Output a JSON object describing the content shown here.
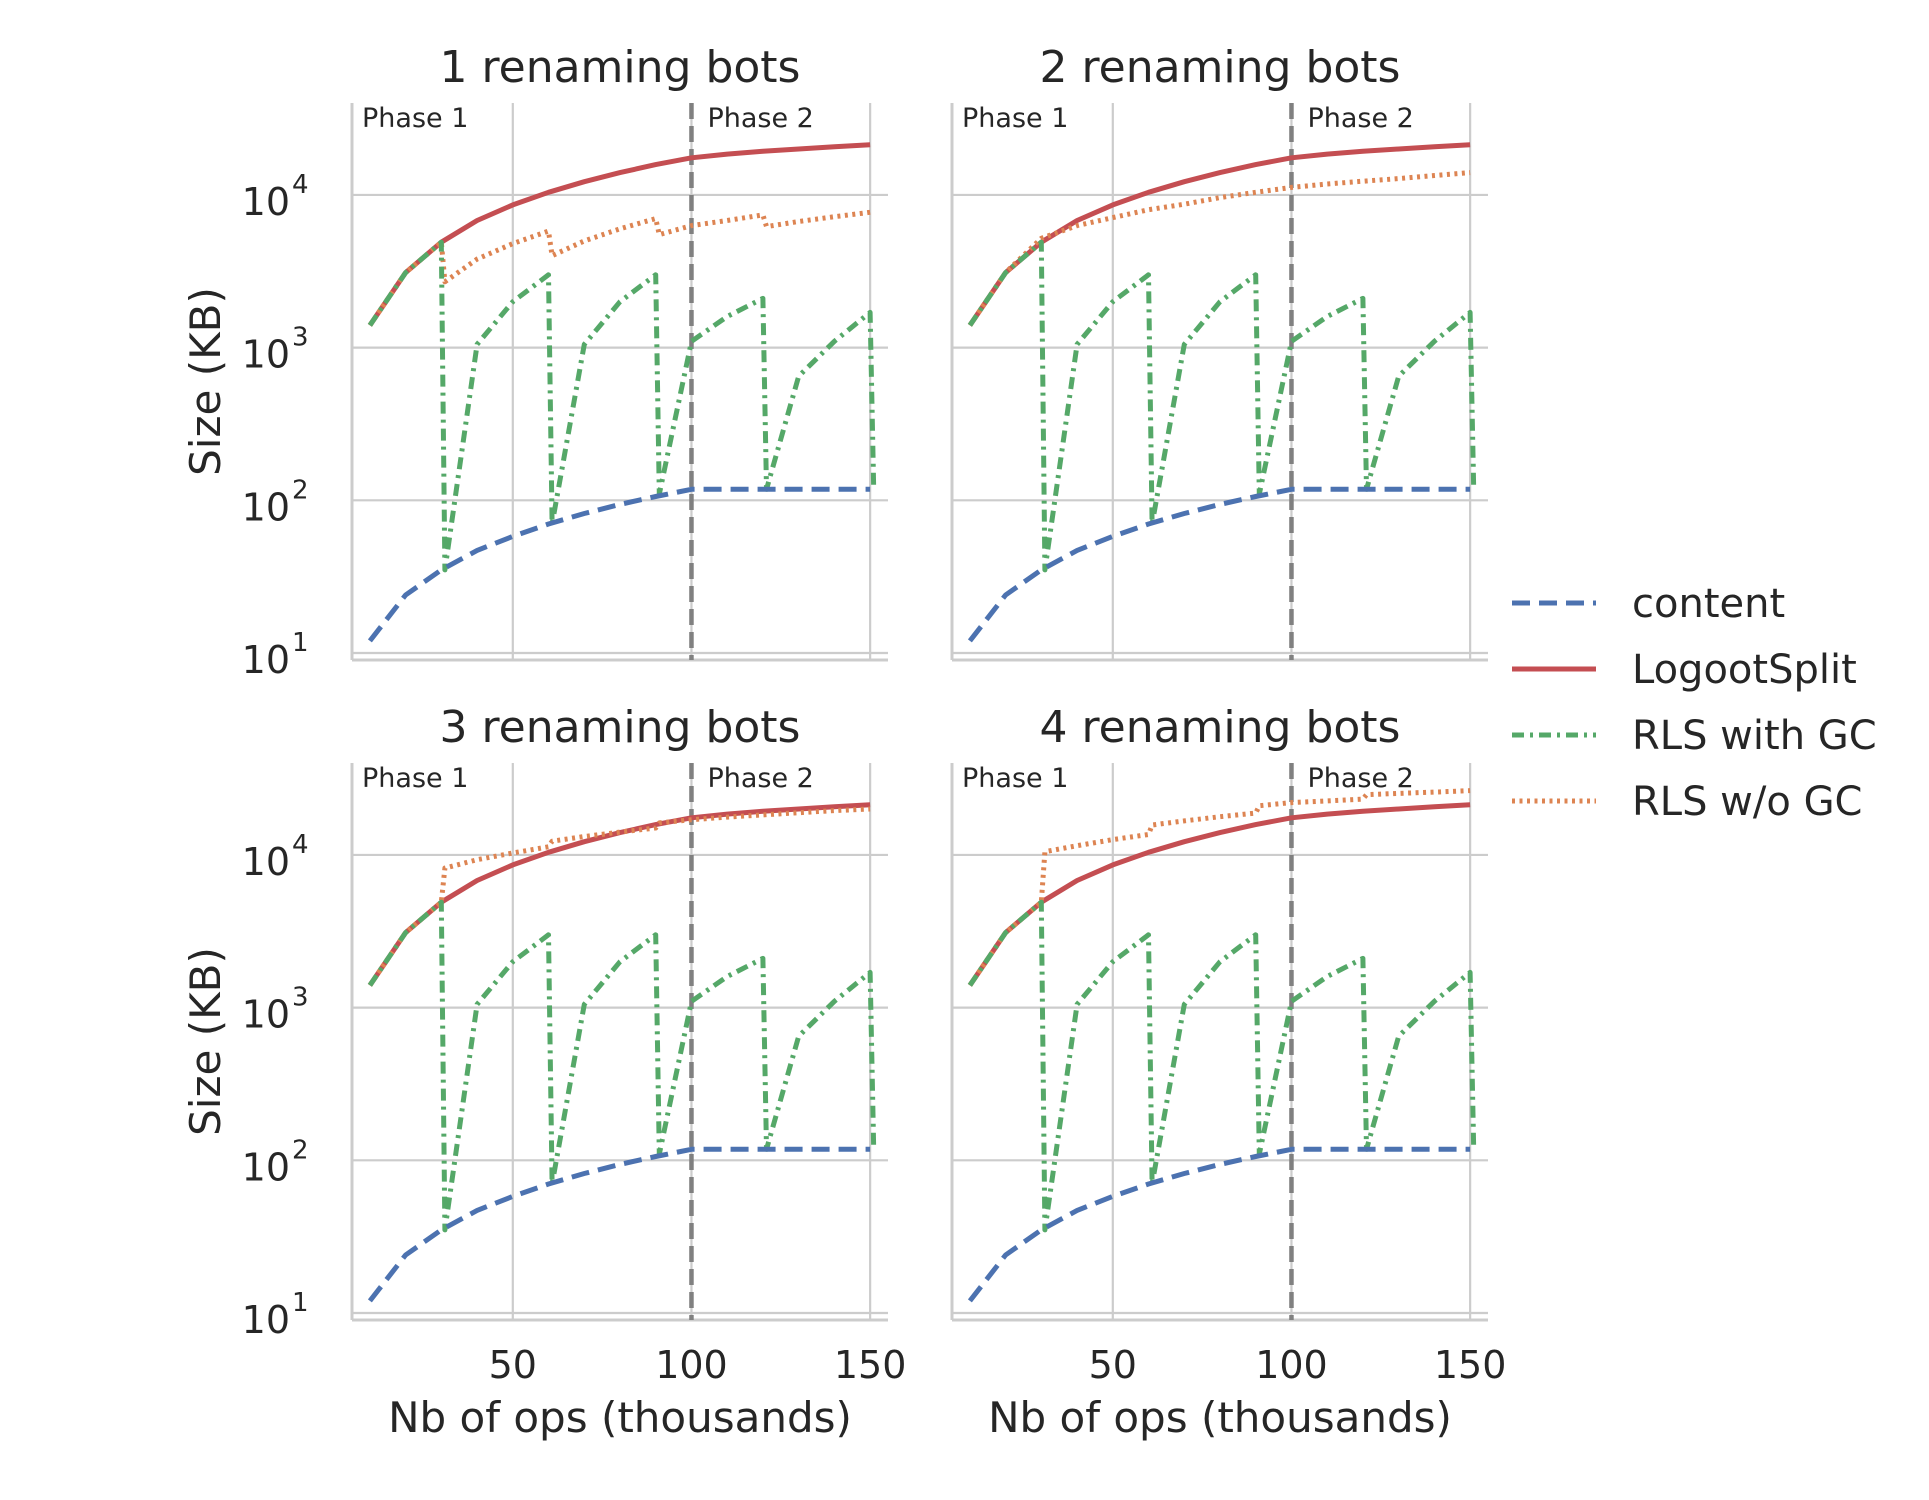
{
  "figure": {
    "ylabel": "Size (KB)",
    "xlabel": "Nb of ops (thousands)",
    "phase1_label": "Phase 1",
    "phase2_label": "Phase 2",
    "phase_boundary_x": 100,
    "legend_placement": "center-right",
    "colors": {
      "content": "#4c72b0",
      "LogootSplit": "#c44e52",
      "RLS with GC": "#55a868",
      "RLS w/o GC": "#dd8452",
      "phase_line": "#808080",
      "grid": "#cccccc",
      "axis": "#cccccc"
    }
  },
  "chart_data": [
    {
      "type": "line",
      "title": "1 renaming bots",
      "xlabel": "",
      "ylabel": "Size (KB)",
      "yscale": "log",
      "ylim": [
        9,
        40000
      ],
      "xlim": [
        5,
        155
      ],
      "xticks": [
        "50",
        "100",
        "150"
      ],
      "grid": true,
      "series": [
        {
          "name": "content",
          "style": "dashed",
          "x": [
            10,
            20,
            30,
            40,
            50,
            60,
            70,
            80,
            90,
            100,
            110,
            120,
            130,
            140,
            150
          ],
          "y": [
            12,
            24,
            35,
            47,
            58,
            70,
            82,
            94,
            106,
            118,
            118,
            118,
            118,
            118,
            118
          ]
        },
        {
          "name": "LogootSplit",
          "style": "solid",
          "x": [
            10,
            20,
            30,
            40,
            50,
            60,
            70,
            80,
            90,
            100,
            110,
            120,
            130,
            140,
            150
          ],
          "y": [
            1400,
            3100,
            4900,
            6800,
            8600,
            10400,
            12200,
            14000,
            15800,
            17500,
            18500,
            19300,
            20000,
            20700,
            21300
          ]
        },
        {
          "name": "RLS with GC",
          "style": "dashdot",
          "x": [
            10,
            20,
            30,
            31,
            40,
            50,
            60,
            61,
            70,
            80,
            90,
            91,
            100,
            110,
            120,
            121,
            130,
            140,
            150,
            151
          ],
          "y": [
            1400,
            3100,
            4900,
            35,
            1050,
            2000,
            3000,
            70,
            1050,
            2000,
            3000,
            110,
            1100,
            1600,
            2100,
            118,
            650,
            1100,
            1700,
            118
          ]
        },
        {
          "name": "RLS w/o GC",
          "style": "dotted",
          "x": [
            10,
            20,
            30,
            31,
            40,
            50,
            60,
            61,
            70,
            80,
            90,
            91,
            100,
            110,
            120,
            121,
            130,
            140,
            150
          ],
          "y": [
            1400,
            3100,
            4900,
            2700,
            3800,
            4800,
            5800,
            4000,
            5000,
            6000,
            7000,
            5500,
            6300,
            6800,
            7400,
            6200,
            6700,
            7200,
            7700
          ]
        }
      ]
    },
    {
      "type": "line",
      "title": "2 renaming bots",
      "xlabel": "",
      "ylabel": "",
      "yscale": "log",
      "ylim": [
        9,
        40000
      ],
      "xlim": [
        5,
        155
      ],
      "xticks": [
        "50",
        "100",
        "150"
      ],
      "grid": true,
      "series": [
        {
          "name": "content",
          "style": "dashed",
          "x": [
            10,
            20,
            30,
            40,
            50,
            60,
            70,
            80,
            90,
            100,
            110,
            120,
            130,
            140,
            150
          ],
          "y": [
            12,
            24,
            35,
            47,
            58,
            70,
            82,
            94,
            106,
            118,
            118,
            118,
            118,
            118,
            118
          ]
        },
        {
          "name": "LogootSplit",
          "style": "solid",
          "x": [
            10,
            20,
            30,
            40,
            50,
            60,
            70,
            80,
            90,
            100,
            110,
            120,
            130,
            140,
            150
          ],
          "y": [
            1400,
            3100,
            4900,
            6800,
            8600,
            10400,
            12200,
            14000,
            15800,
            17500,
            18500,
            19300,
            20000,
            20700,
            21300
          ]
        },
        {
          "name": "RLS with GC",
          "style": "dashdot",
          "x": [
            10,
            20,
            30,
            31,
            40,
            50,
            60,
            61,
            70,
            80,
            90,
            91,
            100,
            110,
            120,
            121,
            130,
            140,
            150,
            151
          ],
          "y": [
            1400,
            3100,
            4900,
            35,
            1050,
            2000,
            3000,
            70,
            1050,
            2000,
            3000,
            110,
            1100,
            1600,
            2100,
            118,
            650,
            1100,
            1700,
            118
          ]
        },
        {
          "name": "RLS w/o GC",
          "style": "dotted",
          "x": [
            10,
            20,
            30,
            40,
            50,
            60,
            70,
            80,
            90,
            100,
            110,
            120,
            130,
            140,
            150
          ],
          "y": [
            1400,
            3100,
            5200,
            6300,
            7100,
            8000,
            8700,
            9600,
            10400,
            11200,
            11800,
            12300,
            12800,
            13400,
            14000
          ]
        }
      ]
    },
    {
      "type": "line",
      "title": "3 renaming bots",
      "xlabel": "Nb of ops (thousands)",
      "ylabel": "Size (KB)",
      "yscale": "log",
      "ylim": [
        9,
        40000
      ],
      "xlim": [
        5,
        155
      ],
      "xticks": [
        "50",
        "100",
        "150"
      ],
      "grid": true,
      "series": [
        {
          "name": "content",
          "style": "dashed",
          "x": [
            10,
            20,
            30,
            40,
            50,
            60,
            70,
            80,
            90,
            100,
            110,
            120,
            130,
            140,
            150
          ],
          "y": [
            12,
            24,
            35,
            47,
            58,
            70,
            82,
            94,
            106,
            118,
            118,
            118,
            118,
            118,
            118
          ]
        },
        {
          "name": "LogootSplit",
          "style": "solid",
          "x": [
            10,
            20,
            30,
            40,
            50,
            60,
            70,
            80,
            90,
            100,
            110,
            120,
            130,
            140,
            150
          ],
          "y": [
            1400,
            3100,
            4900,
            6800,
            8600,
            10400,
            12200,
            14000,
            15800,
            17500,
            18500,
            19300,
            20000,
            20700,
            21300
          ]
        },
        {
          "name": "RLS with GC",
          "style": "dashdot",
          "x": [
            10,
            20,
            30,
            31,
            40,
            50,
            60,
            61,
            70,
            80,
            90,
            91,
            100,
            110,
            120,
            121,
            130,
            140,
            150,
            151
          ],
          "y": [
            1400,
            3100,
            4900,
            35,
            1050,
            2000,
            3000,
            70,
            1050,
            2000,
            3000,
            110,
            1100,
            1600,
            2100,
            118,
            650,
            1100,
            1700,
            118
          ]
        },
        {
          "name": "RLS w/o GC",
          "style": "dotted",
          "x": [
            10,
            20,
            30,
            31,
            40,
            50,
            60,
            61,
            70,
            80,
            90,
            91,
            100,
            110,
            120,
            130,
            140,
            150
          ],
          "y": [
            1400,
            3100,
            4900,
            8200,
            9300,
            10300,
            11300,
            12300,
            13200,
            14100,
            15000,
            16200,
            17000,
            17700,
            18300,
            18900,
            19500,
            20000
          ]
        }
      ]
    },
    {
      "type": "line",
      "title": "4 renaming bots",
      "xlabel": "Nb of ops (thousands)",
      "ylabel": "",
      "yscale": "log",
      "ylim": [
        9,
        40000
      ],
      "xlim": [
        5,
        155
      ],
      "xticks": [
        "50",
        "100",
        "150"
      ],
      "grid": true,
      "series": [
        {
          "name": "content",
          "style": "dashed",
          "x": [
            10,
            20,
            30,
            40,
            50,
            60,
            70,
            80,
            90,
            100,
            110,
            120,
            130,
            140,
            150
          ],
          "y": [
            12,
            24,
            35,
            47,
            58,
            70,
            82,
            94,
            106,
            118,
            118,
            118,
            118,
            118,
            118
          ]
        },
        {
          "name": "LogootSplit",
          "style": "solid",
          "x": [
            10,
            20,
            30,
            40,
            50,
            60,
            70,
            80,
            90,
            100,
            110,
            120,
            130,
            140,
            150
          ],
          "y": [
            1400,
            3100,
            4900,
            6800,
            8600,
            10400,
            12200,
            14000,
            15800,
            17500,
            18500,
            19300,
            20000,
            20700,
            21300
          ]
        },
        {
          "name": "RLS with GC",
          "style": "dashdot",
          "x": [
            10,
            20,
            30,
            31,
            40,
            50,
            60,
            61,
            70,
            80,
            90,
            91,
            100,
            110,
            120,
            121,
            130,
            140,
            150,
            151
          ],
          "y": [
            1400,
            3100,
            4900,
            35,
            1050,
            2000,
            3000,
            70,
            1050,
            2000,
            3000,
            110,
            1100,
            1600,
            2100,
            118,
            650,
            1100,
            1700,
            118
          ]
        },
        {
          "name": "RLS w/o GC",
          "style": "dotted",
          "x": [
            10,
            20,
            30,
            31,
            40,
            50,
            60,
            61,
            70,
            80,
            90,
            91,
            100,
            110,
            120,
            121,
            130,
            140,
            150
          ],
          "y": [
            1400,
            3100,
            4900,
            10500,
            11500,
            12600,
            13600,
            15700,
            16700,
            17800,
            18800,
            21000,
            22000,
            22600,
            23200,
            24800,
            25300,
            25800,
            26400
          ]
        }
      ]
    }
  ],
  "legend": {
    "items": [
      {
        "label": "content",
        "style": "dashed"
      },
      {
        "label": "LogootSplit",
        "style": "solid"
      },
      {
        "label": "RLS with GC",
        "style": "dashdot"
      },
      {
        "label": "RLS w/o GC",
        "style": "dotted"
      }
    ]
  }
}
